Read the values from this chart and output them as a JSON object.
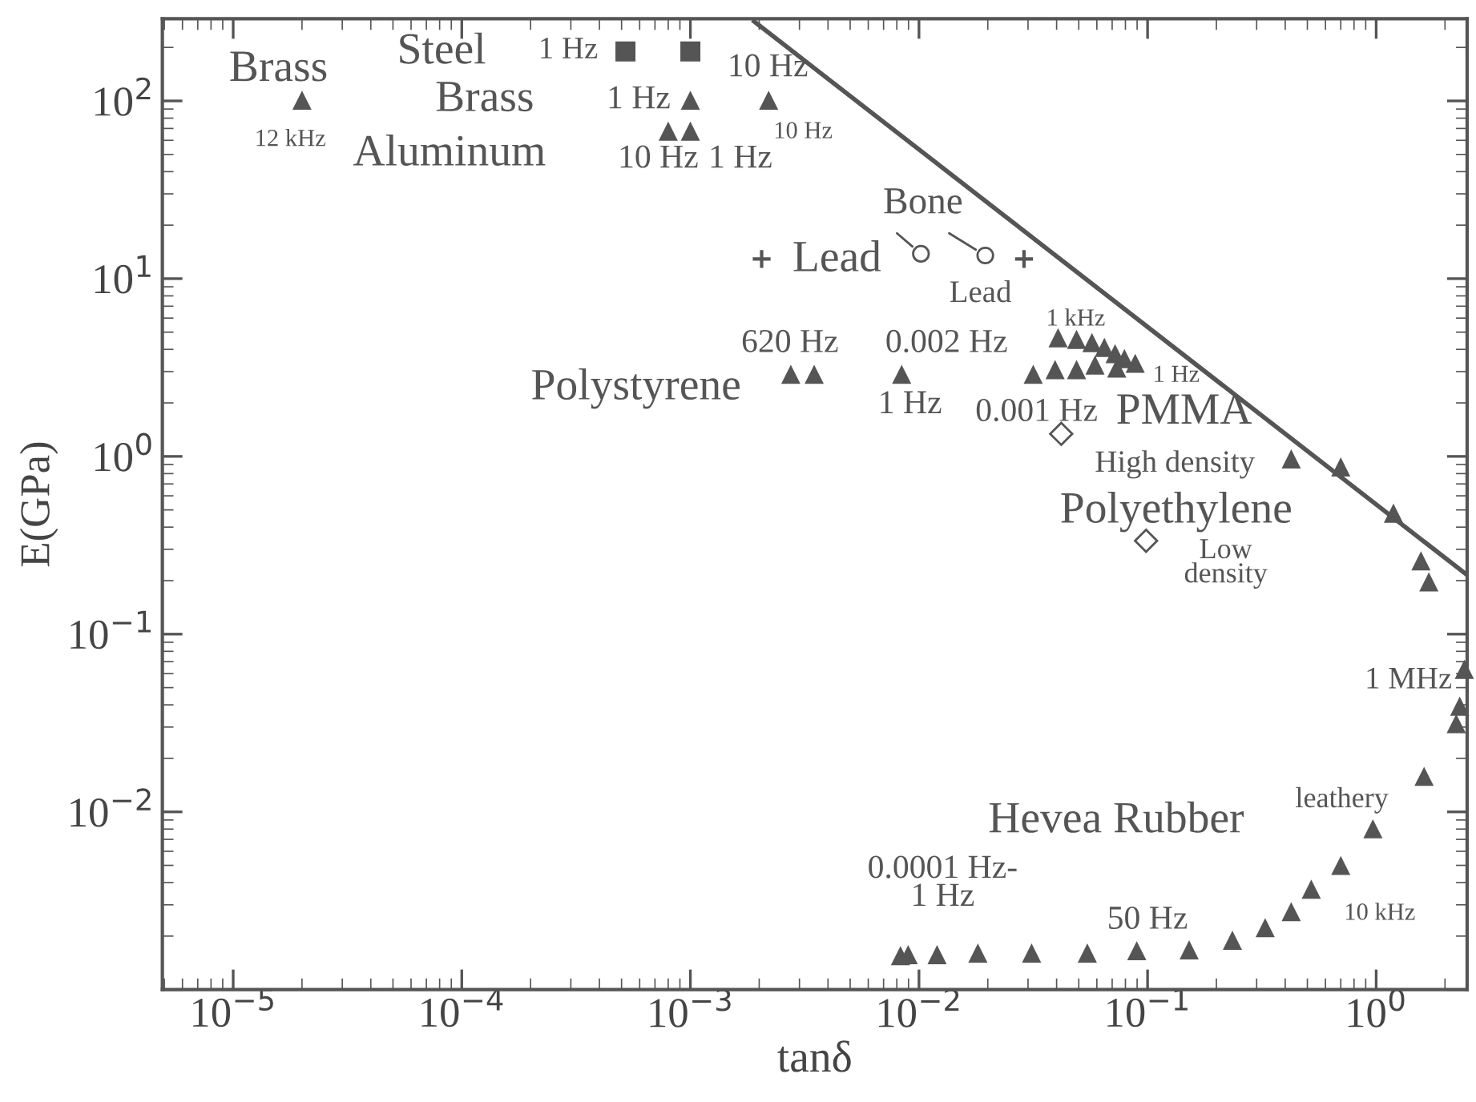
{
  "chart_data": {
    "type": "scatter",
    "log": "xy",
    "grid": false,
    "legend": false,
    "xlabel": "tanδ",
    "ylabel": "E(GPa)",
    "xlim": [
      4.9e-06,
      2.5
    ],
    "ylim": [
      0.001,
      290
    ],
    "xticks": [
      {
        "value": 1e-05,
        "label": "10$^{−5}$"
      },
      {
        "value": 0.0001,
        "label": "10$^{−4}$"
      },
      {
        "value": 0.001,
        "label": "10$^{−3}$"
      },
      {
        "value": 0.01,
        "label": "10$^{−2}$"
      },
      {
        "value": 0.1,
        "label": "10$^{−1}$"
      },
      {
        "value": 1,
        "label": "10$^{0}$"
      }
    ],
    "yticks": [
      {
        "value": 0.001,
        "label": null
      },
      {
        "value": 0.01,
        "label": "10$^{−2}$"
      },
      {
        "value": 0.1,
        "label": "10$^{−1}$"
      },
      {
        "value": 1,
        "label": "10$^{0}$"
      },
      {
        "value": 10,
        "label": "10$^{1}$"
      },
      {
        "value": 100,
        "label": "10$^{2}$"
      }
    ],
    "series": [
      {
        "marker": "triangle",
        "color": "#555555",
        "x": [
          2e-05,
          0.001,
          0.0022,
          0.0008,
          0.001,
          0.0316,
          0.0394,
          0.0489,
          0.0589,
          0.0733,
          0.0406,
          0.0489,
          0.0571,
          0.0647,
          0.0721,
          0.0792,
          0.0883,
          0.425,
          0.7,
          1.19,
          1.57,
          1.7,
          2.43,
          2.32,
          2.24,
          1.62,
          0.968,
          0.7,
          0.52,
          0.425,
          0.327,
          0.235,
          0.152,
          0.0897,
          0.0545,
          0.0311,
          0.0181,
          0.012,
          0.00897,
          0.0083
        ],
        "values": [
          100,
          100,
          100,
          67,
          67,
          2.87,
          3.05,
          3.05,
          3.24,
          3.11,
          4.61,
          4.51,
          4.33,
          4.07,
          3.75,
          3.52,
          3.31,
          0.96,
          0.865,
          0.475,
          0.256,
          0.195,
          0.0628,
          0.039,
          0.0311,
          0.0157,
          0.00796,
          0.00495,
          0.00364,
          0.00272,
          0.00221,
          0.00188,
          0.00166,
          0.00164,
          0.00159,
          0.00159,
          0.00159,
          0.00156,
          0.00156,
          0.00154
        ]
      },
      {
        "marker": "square",
        "color": "#555555",
        "x": [
          0.00052,
          0.001
        ],
        "values": [
          190,
          190
        ]
      },
      {
        "marker": "cross",
        "color": "#555555",
        "x": [
          0.00205,
          0.0288
        ],
        "values": [
          12.9,
          12.9
        ]
      },
      {
        "marker": "circle",
        "color": "#555555",
        "x": [
          0.0102,
          0.0195
        ],
        "values": [
          13.8,
          13.5
        ]
      },
      {
        "marker": "triangle",
        "color": "#555555",
        "x": [
          0.00275,
          0.00348,
          0.0084
        ],
        "values": [
          2.87,
          2.87,
          2.87
        ]
      },
      {
        "marker": "diamond",
        "color": "#555555",
        "x": [
          0.0419,
          0.0985
        ],
        "values": [
          1.34,
          0.335
        ]
      },
      {
        "type": "line",
        "marker": "none",
        "line_style": "solid",
        "color": "#555555",
        "x": [
          0.0019,
          2.5
        ],
        "values": [
          280,
          0.215
        ]
      }
    ],
    "annotations": [
      "Brass",
      "12 kHz",
      "Steel",
      "Brass",
      "Aluminum",
      "1 Hz",
      "10 Hz",
      "1 Hz",
      "10 Hz",
      "10 Hz",
      "1 Hz",
      "Lead",
      {
        "text": "Bone",
        "x": 0.0102,
        "y": 13.8
      },
      "Lead",
      "620 Hz",
      "0.002 Hz",
      "Polystyrene",
      "1 Hz",
      "0.001 Hz",
      "1 kHz",
      "1 Hz",
      "PMMA",
      "High density",
      "Polyethylene",
      "Low\ndensity",
      "1 MHz",
      "leathery",
      "Hevea Rubber",
      "0.0001 Hz-\n1 Hz",
      "50 Hz",
      "10 kHz"
    ]
  }
}
